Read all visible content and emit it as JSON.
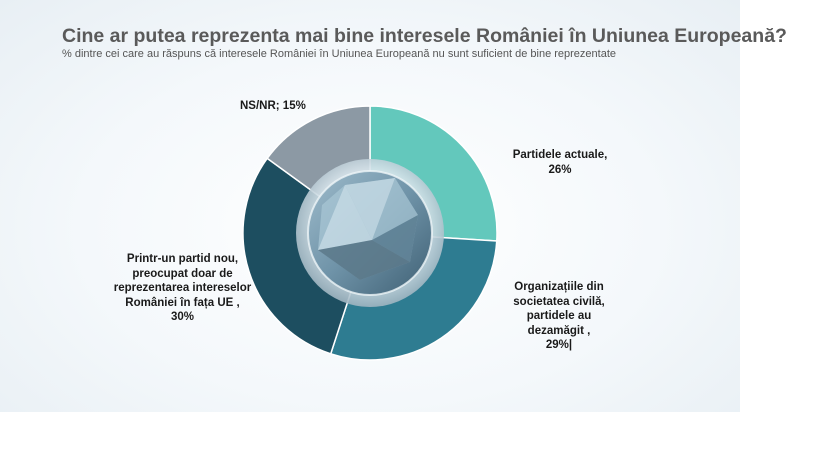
{
  "title": "Cine ar putea reprezenta mai bine interesele României în Uniunea Europeană?",
  "subtitle": "% dintre cei care au răspuns că interesele României în Uniunea Europeană nu sunt suficient de bine reprezentate",
  "labels": {
    "ns": [
      "NS/NR; 15%"
    ],
    "pa": [
      "Partidele actuale,",
      "26%"
    ],
    "oc": [
      "Organizațiile din",
      "societatea civilă,",
      "partidele au",
      "dezamăgit   ,",
      "29%|"
    ],
    "pn": [
      "Printr-un partid nou,",
      "preocupat doar de",
      "reprezentarea intereselor",
      "României în fața UE ,",
      "30%"
    ]
  },
  "chart_data": {
    "type": "pie",
    "title": "Cine ar putea reprezenta mai bine interesele României în Uniunea Europeană?",
    "subtitle": "% dintre cei care au răspuns că interesele României în Uniunea Europeană nu sunt suficient de bine reprezentate",
    "unit": "%",
    "slices": [
      {
        "label": "Partidele actuale",
        "value": 26,
        "color": "#63c8bc"
      },
      {
        "label": "Organizațiile din societatea civilă, partidele au dezamăgit",
        "value": 29,
        "color": "#2e7c91"
      },
      {
        "label": "Printr-un partid nou, preocupat doar de reprezentarea intereselor României în fața UE",
        "value": 30,
        "color": "#1d4e60"
      },
      {
        "label": "NS/NR",
        "value": 15,
        "color": "#8c99a4"
      }
    ]
  }
}
